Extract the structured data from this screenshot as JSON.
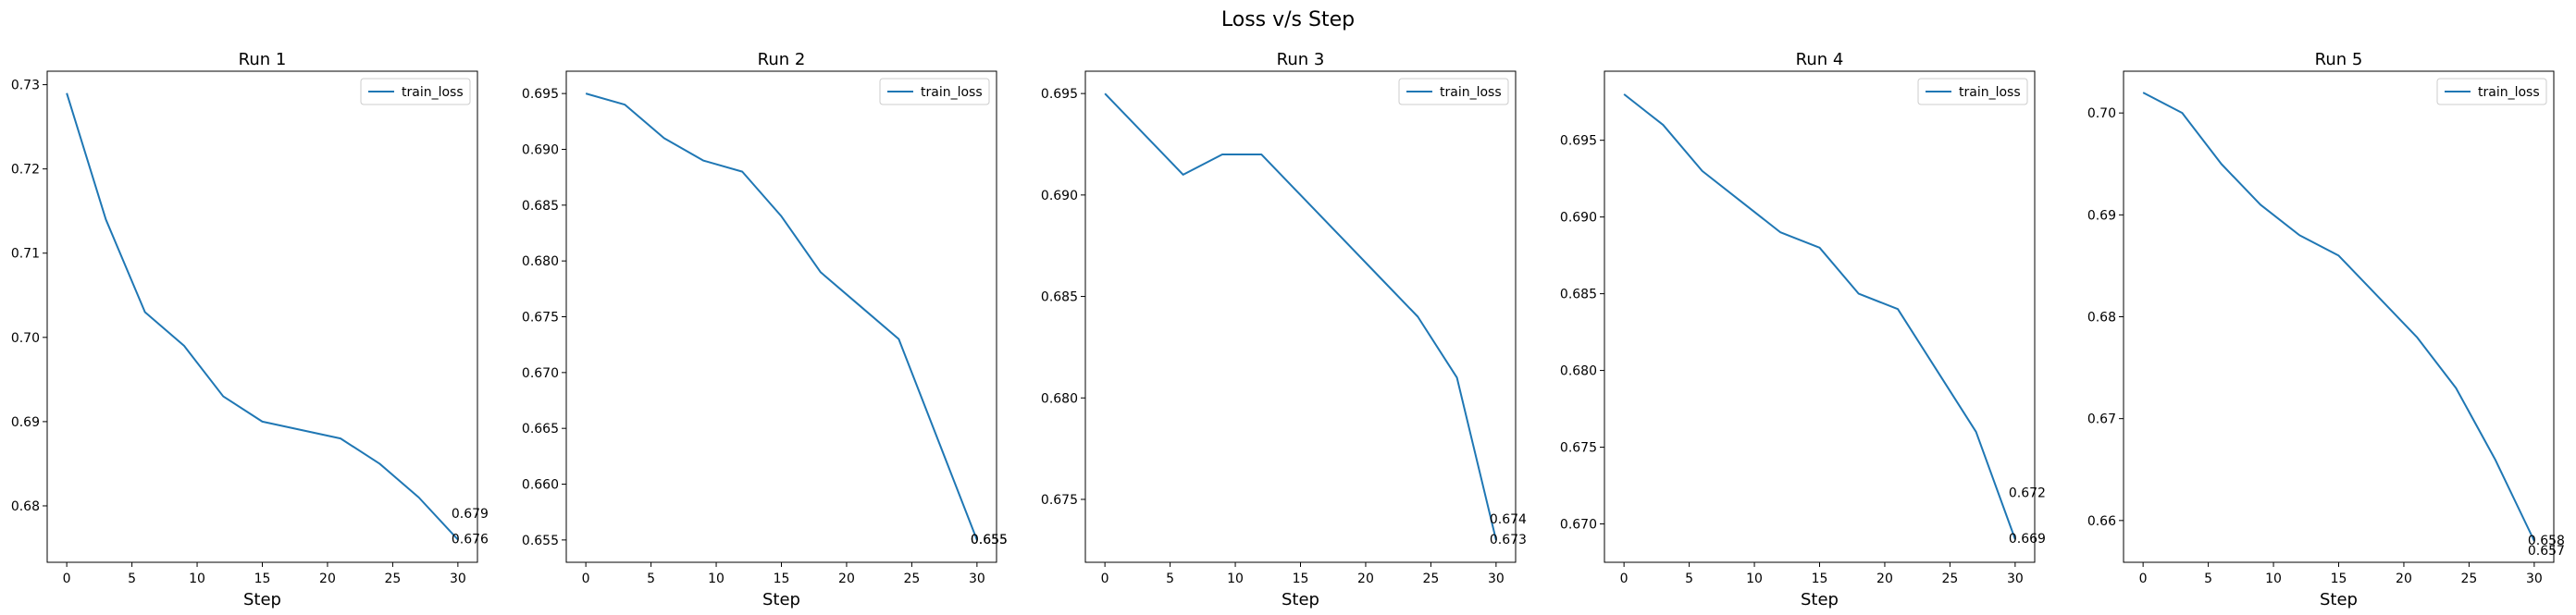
{
  "figure": {
    "title": "Loss v/s Step"
  },
  "colors": {
    "line": "#1f77b4",
    "axes": "#000000",
    "legend_border": "#cccccc"
  },
  "chart_data": [
    {
      "type": "line",
      "title": "Run 1",
      "xlabel": "Step",
      "ylabel": "",
      "x": [
        0,
        3,
        6,
        9,
        12,
        15,
        18,
        21,
        24,
        27,
        30
      ],
      "series": [
        {
          "name": "train_loss",
          "values": [
            0.729,
            0.714,
            0.703,
            0.699,
            0.693,
            0.69,
            0.689,
            0.688,
            0.685,
            0.681,
            0.676
          ]
        }
      ],
      "xlim": [
        -1.5,
        31.5
      ],
      "ylim": [
        0.6733,
        0.7316
      ],
      "xticks": [
        0,
        5,
        10,
        15,
        20,
        25,
        30
      ],
      "yticks": [
        0.68,
        0.69,
        0.7,
        0.71,
        0.72,
        0.73
      ],
      "ytick_labels": [
        "0.68",
        "0.69",
        "0.70",
        "0.71",
        "0.72",
        "0.73"
      ],
      "annotations": [
        {
          "x": 30,
          "y": 0.679,
          "text": "0.679"
        },
        {
          "x": 30,
          "y": 0.676,
          "text": "0.676"
        }
      ],
      "legend": "upper right",
      "grid": false
    },
    {
      "type": "line",
      "title": "Run 2",
      "xlabel": "Step",
      "ylabel": "",
      "x": [
        0,
        3,
        6,
        9,
        12,
        15,
        18,
        21,
        24,
        27,
        30
      ],
      "series": [
        {
          "name": "train_loss",
          "values": [
            0.695,
            0.694,
            0.691,
            0.689,
            0.688,
            0.684,
            0.679,
            0.676,
            0.673,
            0.664,
            0.655
          ]
        }
      ],
      "xlim": [
        -1.5,
        31.5
      ],
      "ylim": [
        0.653,
        0.697
      ],
      "xticks": [
        0,
        5,
        10,
        15,
        20,
        25,
        30
      ],
      "yticks": [
        0.655,
        0.66,
        0.665,
        0.67,
        0.675,
        0.68,
        0.685,
        0.69,
        0.695
      ],
      "ytick_labels": [
        "0.655",
        "0.660",
        "0.665",
        "0.670",
        "0.675",
        "0.680",
        "0.685",
        "0.690",
        "0.695"
      ],
      "annotations": [
        {
          "x": 30,
          "y": 0.655,
          "text": "0.655"
        },
        {
          "x": 30,
          "y": 0.655,
          "text": "0.655"
        }
      ],
      "legend": "upper right",
      "grid": false
    },
    {
      "type": "line",
      "title": "Run 3",
      "xlabel": "Step",
      "ylabel": "",
      "x": [
        0,
        3,
        6,
        9,
        12,
        15,
        18,
        21,
        24,
        27,
        30
      ],
      "series": [
        {
          "name": "train_loss",
          "values": [
            0.695,
            0.693,
            0.691,
            0.692,
            0.692,
            0.69,
            0.688,
            0.686,
            0.684,
            0.681,
            0.673
          ]
        }
      ],
      "xlim": [
        -1.5,
        31.5
      ],
      "ylim": [
        0.6719,
        0.6961
      ],
      "xticks": [
        0,
        5,
        10,
        15,
        20,
        25,
        30
      ],
      "yticks": [
        0.675,
        0.68,
        0.685,
        0.69,
        0.695
      ],
      "ytick_labels": [
        "0.675",
        "0.680",
        "0.685",
        "0.690",
        "0.695"
      ],
      "annotations": [
        {
          "x": 30,
          "y": 0.674,
          "text": "0.674"
        },
        {
          "x": 30,
          "y": 0.673,
          "text": "0.673"
        }
      ],
      "legend": "upper right",
      "grid": false
    },
    {
      "type": "line",
      "title": "Run 4",
      "xlabel": "Step",
      "ylabel": "",
      "x": [
        0,
        3,
        6,
        9,
        12,
        15,
        18,
        21,
        24,
        27,
        30
      ],
      "series": [
        {
          "name": "train_loss",
          "values": [
            0.698,
            0.696,
            0.693,
            0.691,
            0.689,
            0.688,
            0.685,
            0.684,
            0.68,
            0.676,
            0.669
          ]
        }
      ],
      "xlim": [
        -1.5,
        31.5
      ],
      "ylim": [
        0.6675,
        0.6995
      ],
      "xticks": [
        0,
        5,
        10,
        15,
        20,
        25,
        30
      ],
      "yticks": [
        0.67,
        0.675,
        0.68,
        0.685,
        0.69,
        0.695
      ],
      "ytick_labels": [
        "0.670",
        "0.675",
        "0.680",
        "0.685",
        "0.690",
        "0.695"
      ],
      "annotations": [
        {
          "x": 30,
          "y": 0.672,
          "text": "0.672"
        },
        {
          "x": 30,
          "y": 0.669,
          "text": "0.669"
        }
      ],
      "legend": "upper right",
      "grid": false
    },
    {
      "type": "line",
      "title": "Run 5",
      "xlabel": "Step",
      "ylabel": "",
      "x": [
        0,
        3,
        6,
        9,
        12,
        15,
        18,
        21,
        24,
        27,
        30
      ],
      "series": [
        {
          "name": "train_loss",
          "values": [
            0.702,
            0.7,
            0.695,
            0.691,
            0.688,
            0.686,
            0.682,
            0.678,
            0.673,
            0.666,
            0.658
          ]
        }
      ],
      "xlim": [
        -1.5,
        31.5
      ],
      "ylim": [
        0.6559,
        0.7041
      ],
      "xticks": [
        0,
        5,
        10,
        15,
        20,
        25,
        30
      ],
      "yticks": [
        0.66,
        0.67,
        0.68,
        0.69,
        0.7
      ],
      "ytick_labels": [
        "0.66",
        "0.67",
        "0.68",
        "0.69",
        "0.70"
      ],
      "annotations": [
        {
          "x": 30,
          "y": 0.658,
          "text": "0.658"
        },
        {
          "x": 30,
          "y": 0.657,
          "text": "0.657"
        }
      ],
      "legend": "upper right",
      "grid": false
    }
  ]
}
